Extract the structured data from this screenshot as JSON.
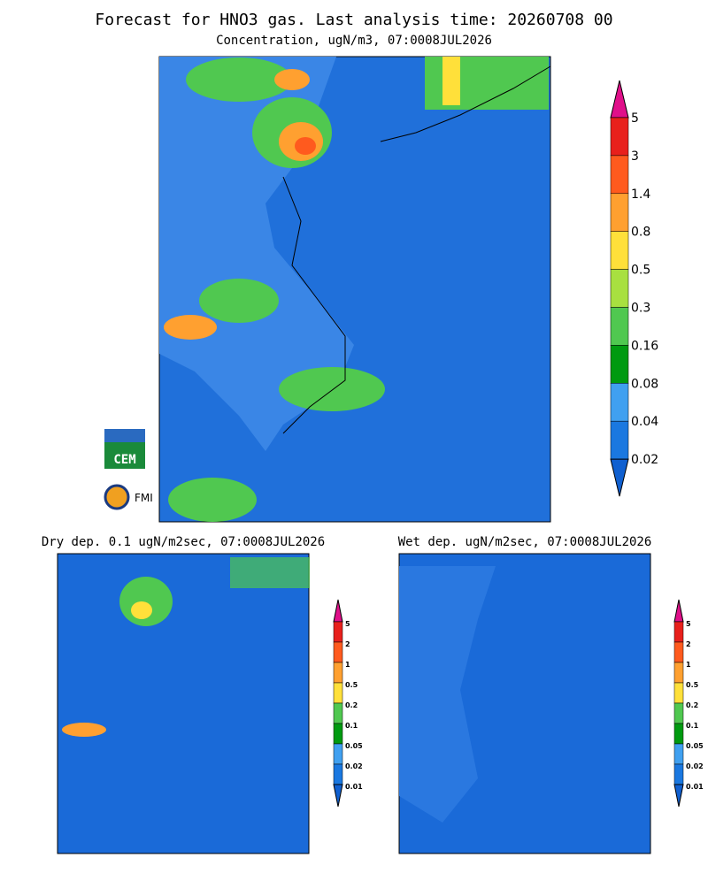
{
  "header": {
    "title": "Forecast for HNO3 gas. Last analysis time: 20260708 00",
    "subtitle": "Concentration, ugN/m3, 07:0008JUL2026"
  },
  "main_legend": {
    "labels": [
      "5",
      "3",
      "1.4",
      "0.8",
      "0.5",
      "0.3",
      "0.16",
      "0.08",
      "0.04",
      "0.02"
    ],
    "colors": [
      "#e0108a",
      "#e8201c",
      "#ff5a1e",
      "#ffa030",
      "#ffe03a",
      "#a8e040",
      "#50c850",
      "#009a10",
      "#40a0f0",
      "#1a78e0",
      "#1060d0"
    ]
  },
  "panels": [
    {
      "title": "Dry dep. 0.1 ugN/m2sec, 07:0008JUL2026"
    },
    {
      "title": "Wet dep. ugN/m2sec, 07:0008JUL2026"
    }
  ],
  "small_legend": {
    "labels": [
      "5",
      "2",
      "1",
      "0.5",
      "0.2",
      "0.1",
      "0.05",
      "0.02",
      "0.01"
    ]
  },
  "logos": {
    "cem": "CEM",
    "fmi": "FMI"
  }
}
